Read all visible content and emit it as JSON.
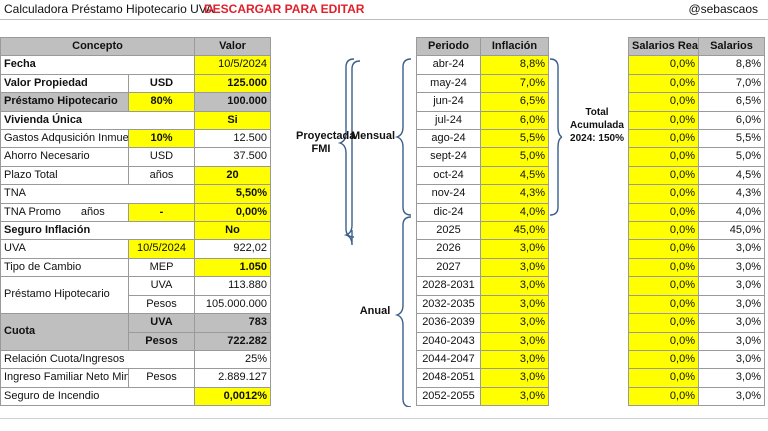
{
  "header": {
    "title": "Calculadora Préstamo Hipotecario UVA",
    "download_link": "DESCARGAR PARA EDITAR",
    "handle": "@sebascaos"
  },
  "left": {
    "col_concepto": "Concepto",
    "col_valor": "Valor",
    "fecha": {
      "label": "Fecha",
      "value": "10/5/2024"
    },
    "valor_propiedad": {
      "label": "Valor Propiedad",
      "unit": "USD",
      "value": "125.000"
    },
    "prestamo": {
      "label": "Préstamo Hipotecario",
      "pct": "80%",
      "value": "100.000"
    },
    "vivienda": {
      "label": "Vivienda Única",
      "value": "Si"
    },
    "gastos": {
      "label": "Gastos Adqusición Inmueble",
      "pct": "10%",
      "value": "12.500"
    },
    "ahorro": {
      "label": "Ahorro Necesario",
      "unit": "USD",
      "value": "37.500"
    },
    "plazo": {
      "label": "Plazo Total",
      "unit": "años",
      "value": "20"
    },
    "tna": {
      "label": "TNA",
      "value": "5,50%"
    },
    "tna_promo": {
      "label": "TNA Promo",
      "unit": "años",
      "dash": "-",
      "value": "0,00%"
    },
    "seguro_inflacion": {
      "label": "Seguro Inflación",
      "value": "No"
    },
    "uva": {
      "label": "UVA",
      "date": "10/5/2024",
      "value": "922,02"
    },
    "tipo_cambio": {
      "label": "Tipo de Cambio",
      "unit": "MEP",
      "value": "1.050"
    },
    "prestamo_hip": {
      "label": "Préstamo Hipotecario",
      "unit1": "UVA",
      "value1": "113.880",
      "unit2": "Pesos",
      "value2": "105.000.000"
    },
    "cuota": {
      "label": "Cuota",
      "unit1": "UVA",
      "value1": "783",
      "unit2": "Pesos",
      "value2": "722.282"
    },
    "relacion": {
      "label": "Relación Cuota/Ingresos",
      "value": "25%"
    },
    "ingreso": {
      "label": "Ingreso Familiar Neto Minimo",
      "unit": "Pesos",
      "value": "2.889.127"
    },
    "seguro_incendio": {
      "label": "Seguro de Incendio",
      "value": "0,0012%"
    }
  },
  "labels": {
    "proyectada": "Proyectada",
    "fmi": "FMI",
    "mensual": "Mensual",
    "anual": "Anual",
    "total1": "Total",
    "total2": "Acumulada",
    "total3": "2024: 150%"
  },
  "middle": {
    "col_periodo": "Periodo",
    "col_inflacion": "Inflación",
    "rows": [
      {
        "periodo": "abr-24",
        "inflacion": "8,8%"
      },
      {
        "periodo": "may-24",
        "inflacion": "7,0%"
      },
      {
        "periodo": "jun-24",
        "inflacion": "6,5%"
      },
      {
        "periodo": "jul-24",
        "inflacion": "6,0%"
      },
      {
        "periodo": "ago-24",
        "inflacion": "5,5%"
      },
      {
        "periodo": "sept-24",
        "inflacion": "5,0%"
      },
      {
        "periodo": "oct-24",
        "inflacion": "4,5%"
      },
      {
        "periodo": "nov-24",
        "inflacion": "4,3%"
      },
      {
        "periodo": "dic-24",
        "inflacion": "4,0%"
      },
      {
        "periodo": "2025",
        "inflacion": "45,0%"
      },
      {
        "periodo": "2026",
        "inflacion": "3,0%"
      },
      {
        "periodo": "2027",
        "inflacion": "3,0%"
      },
      {
        "periodo": "2028-2031",
        "inflacion": "3,0%"
      },
      {
        "periodo": "2032-2035",
        "inflacion": "3,0%"
      },
      {
        "periodo": "2036-2039",
        "inflacion": "3,0%"
      },
      {
        "periodo": "2040-2043",
        "inflacion": "3,0%"
      },
      {
        "periodo": "2044-2047",
        "inflacion": "3,0%"
      },
      {
        "periodo": "2048-2051",
        "inflacion": "3,0%"
      },
      {
        "periodo": "2052-2055",
        "inflacion": "3,0%"
      }
    ]
  },
  "right": {
    "col_salarios_real": "Salarios Real",
    "col_salarios": "Salarios",
    "rows": [
      {
        "real": "0,0%",
        "sal": "8,8%"
      },
      {
        "real": "0,0%",
        "sal": "7,0%"
      },
      {
        "real": "0,0%",
        "sal": "6,5%"
      },
      {
        "real": "0,0%",
        "sal": "6,0%"
      },
      {
        "real": "0,0%",
        "sal": "5,5%"
      },
      {
        "real": "0,0%",
        "sal": "5,0%"
      },
      {
        "real": "0,0%",
        "sal": "4,5%"
      },
      {
        "real": "0,0%",
        "sal": "4,3%"
      },
      {
        "real": "0,0%",
        "sal": "4,0%"
      },
      {
        "real": "0,0%",
        "sal": "45,0%"
      },
      {
        "real": "0,0%",
        "sal": "3,0%"
      },
      {
        "real": "0,0%",
        "sal": "3,0%"
      },
      {
        "real": "0,0%",
        "sal": "3,0%"
      },
      {
        "real": "0,0%",
        "sal": "3,0%"
      },
      {
        "real": "0,0%",
        "sal": "3,0%"
      },
      {
        "real": "0,0%",
        "sal": "3,0%"
      },
      {
        "real": "0,0%",
        "sal": "3,0%"
      },
      {
        "real": "0,0%",
        "sal": "3,0%"
      },
      {
        "real": "0,0%",
        "sal": "3,0%"
      }
    ]
  },
  "colors": {
    "input_yellow": "#ffff00",
    "header_gray": "#bfbfbf",
    "link_red": "#e0202a",
    "brace_blue": "#3b5f8a"
  }
}
